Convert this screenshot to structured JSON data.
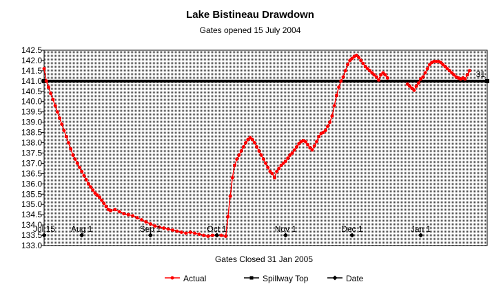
{
  "chart_data": {
    "type": "line",
    "title": "Lake Bistineau Drawdown",
    "subtitle": "Gates opened 15 July 2004",
    "footer": "Gates Closed 31 Jan 2005",
    "xlabel": "",
    "ylabel": "",
    "xlim": [
      "2004-07-15",
      "2005-01-31"
    ],
    "ylim": [
      133.0,
      142.5
    ],
    "y_ticks": [
      133.0,
      133.5,
      134.0,
      134.5,
      135.0,
      135.5,
      136.0,
      136.5,
      137.0,
      137.5,
      138.0,
      138.5,
      139.0,
      139.5,
      140.0,
      140.5,
      141.0,
      141.5,
      142.0,
      142.5
    ],
    "y_tick_labels": [
      "133.0",
      "133.5",
      "134.0",
      "134.5",
      "135.0",
      "135.5",
      "136.0",
      "136.5",
      "137.0",
      "137.5",
      "138.0",
      "138.5",
      "139.0",
      "139.5",
      "140.0",
      "140.5",
      "141.0",
      "141.5",
      "142.0",
      "142.5"
    ],
    "grid": true,
    "legend_position": "bottom",
    "colors": {
      "actual": "#ff0000",
      "spillway": "#000000",
      "date": "#000000"
    },
    "series": [
      {
        "name": "Actual",
        "color": "#ff0000",
        "points": [
          [
            "2004-07-15",
            141.6
          ],
          [
            "2004-07-16",
            141.0
          ],
          [
            "2004-07-17",
            140.7
          ],
          [
            "2004-07-18",
            140.4
          ],
          [
            "2004-07-19",
            140.1
          ],
          [
            "2004-07-20",
            139.8
          ],
          [
            "2004-07-21",
            139.5
          ],
          [
            "2004-07-22",
            139.2
          ],
          [
            "2004-07-23",
            138.9
          ],
          [
            "2004-07-24",
            138.6
          ],
          [
            "2004-07-25",
            138.3
          ],
          [
            "2004-07-26",
            138.0
          ],
          [
            "2004-07-27",
            137.7
          ],
          [
            "2004-07-28",
            137.4
          ],
          [
            "2004-07-29",
            137.2
          ],
          [
            "2004-07-30",
            137.0
          ],
          [
            "2004-07-31",
            136.8
          ],
          [
            "2004-08-01",
            136.6
          ],
          [
            "2004-08-02",
            136.4
          ],
          [
            "2004-08-03",
            136.2
          ],
          [
            "2004-08-04",
            136.0
          ],
          [
            "2004-08-05",
            135.85
          ],
          [
            "2004-08-06",
            135.7
          ],
          [
            "2004-08-07",
            135.55
          ],
          [
            "2004-08-08",
            135.45
          ],
          [
            "2004-08-09",
            135.35
          ],
          [
            "2004-08-10",
            135.2
          ],
          [
            "2004-08-11",
            135.05
          ],
          [
            "2004-08-12",
            134.9
          ],
          [
            "2004-08-13",
            134.75
          ],
          [
            "2004-08-14",
            134.7
          ],
          [
            "2004-08-16",
            134.75
          ],
          [
            "2004-08-18",
            134.65
          ],
          [
            "2004-08-20",
            134.55
          ],
          [
            "2004-08-22",
            134.5
          ],
          [
            "2004-08-24",
            134.45
          ],
          [
            "2004-08-26",
            134.35
          ],
          [
            "2004-08-28",
            134.25
          ],
          [
            "2004-08-30",
            134.15
          ],
          [
            "2004-09-01",
            134.05
          ],
          [
            "2004-09-03",
            133.95
          ],
          [
            "2004-09-05",
            133.9
          ],
          [
            "2004-09-07",
            133.85
          ],
          [
            "2004-09-09",
            133.8
          ],
          [
            "2004-09-11",
            133.75
          ],
          [
            "2004-09-13",
            133.7
          ],
          [
            "2004-09-15",
            133.65
          ],
          [
            "2004-09-17",
            133.6
          ],
          [
            "2004-09-19",
            133.65
          ],
          [
            "2004-09-21",
            133.6
          ],
          [
            "2004-09-23",
            133.55
          ],
          [
            "2004-09-25",
            133.5
          ],
          [
            "2004-09-27",
            133.45
          ],
          [
            "2004-09-29",
            133.5
          ],
          [
            "2004-10-01",
            133.5
          ],
          [
            "2004-10-03",
            133.5
          ],
          [
            "2004-10-05",
            133.45
          ],
          [
            "2004-10-06",
            134.4
          ],
          [
            "2004-10-07",
            135.4
          ],
          [
            "2004-10-08",
            136.3
          ],
          [
            "2004-10-09",
            136.9
          ],
          [
            "2004-10-10",
            137.2
          ],
          [
            "2004-10-11",
            137.4
          ],
          [
            "2004-10-12",
            137.6
          ],
          [
            "2004-10-13",
            137.8
          ],
          [
            "2004-10-14",
            138.0
          ],
          [
            "2004-10-15",
            138.15
          ],
          [
            "2004-10-16",
            138.25
          ],
          [
            "2004-10-17",
            138.15
          ],
          [
            "2004-10-18",
            138.0
          ],
          [
            "2004-10-19",
            137.8
          ],
          [
            "2004-10-20",
            137.6
          ],
          [
            "2004-10-21",
            137.4
          ],
          [
            "2004-10-22",
            137.2
          ],
          [
            "2004-10-23",
            137.0
          ],
          [
            "2004-10-24",
            136.8
          ],
          [
            "2004-10-25",
            136.6
          ],
          [
            "2004-10-26",
            136.5
          ],
          [
            "2004-10-27",
            136.3
          ],
          [
            "2004-10-28",
            136.6
          ],
          [
            "2004-10-29",
            136.75
          ],
          [
            "2004-10-30",
            136.9
          ],
          [
            "2004-10-31",
            137.0
          ],
          [
            "2004-11-01",
            137.1
          ],
          [
            "2004-11-02",
            137.25
          ],
          [
            "2004-11-03",
            137.4
          ],
          [
            "2004-11-04",
            137.5
          ],
          [
            "2004-11-05",
            137.65
          ],
          [
            "2004-11-06",
            137.8
          ],
          [
            "2004-11-07",
            137.95
          ],
          [
            "2004-11-08",
            138.05
          ],
          [
            "2004-11-09",
            138.1
          ],
          [
            "2004-11-10",
            138.05
          ],
          [
            "2004-11-11",
            137.9
          ],
          [
            "2004-11-12",
            137.75
          ],
          [
            "2004-11-13",
            137.65
          ],
          [
            "2004-11-14",
            137.85
          ],
          [
            "2004-11-15",
            138.05
          ],
          [
            "2004-11-16",
            138.3
          ],
          [
            "2004-11-17",
            138.45
          ],
          [
            "2004-11-18",
            138.5
          ],
          [
            "2004-11-19",
            138.6
          ],
          [
            "2004-11-20",
            138.8
          ],
          [
            "2004-11-21",
            139.0
          ],
          [
            "2004-11-22",
            139.3
          ],
          [
            "2004-11-23",
            139.8
          ],
          [
            "2004-11-24",
            140.3
          ],
          [
            "2004-11-25",
            140.7
          ],
          [
            "2004-11-26",
            141.0
          ],
          [
            "2004-11-27",
            141.2
          ],
          [
            "2004-11-28",
            141.5
          ],
          [
            "2004-11-29",
            141.8
          ],
          [
            "2004-11-30",
            142.0
          ],
          [
            "2004-12-01",
            142.1
          ],
          [
            "2004-12-02",
            142.2
          ],
          [
            "2004-12-03",
            142.25
          ],
          [
            "2004-12-04",
            142.15
          ],
          [
            "2004-12-05",
            142.0
          ],
          [
            "2004-12-06",
            141.85
          ],
          [
            "2004-12-07",
            141.7
          ],
          [
            "2004-12-08",
            141.6
          ],
          [
            "2004-12-09",
            141.5
          ],
          [
            "2004-12-10",
            141.4
          ],
          [
            "2004-12-11",
            141.3
          ],
          [
            "2004-12-12",
            141.2
          ],
          [
            "2004-12-13",
            141.05
          ],
          [
            "2004-12-14",
            141.3
          ],
          [
            "2004-12-15",
            141.4
          ],
          [
            "2004-12-16",
            141.3
          ],
          [
            "2004-12-17",
            141.15
          ],
          [
            "2004-12-26",
            140.85
          ],
          [
            "2004-12-27",
            140.75
          ],
          [
            "2004-12-28",
            140.65
          ],
          [
            "2004-12-29",
            140.55
          ],
          [
            "2004-12-30",
            140.75
          ],
          [
            "2004-12-31",
            140.9
          ],
          [
            "2005-01-01",
            141.1
          ],
          [
            "2005-01-02",
            141.2
          ],
          [
            "2005-01-03",
            141.4
          ],
          [
            "2005-01-04",
            141.6
          ],
          [
            "2005-01-05",
            141.8
          ],
          [
            "2005-01-06",
            141.9
          ],
          [
            "2005-01-07",
            141.95
          ],
          [
            "2005-01-08",
            141.95
          ],
          [
            "2005-01-09",
            141.95
          ],
          [
            "2005-01-10",
            141.9
          ],
          [
            "2005-01-11",
            141.8
          ],
          [
            "2005-01-12",
            141.7
          ],
          [
            "2005-01-13",
            141.6
          ],
          [
            "2005-01-14",
            141.5
          ],
          [
            "2005-01-15",
            141.4
          ],
          [
            "2005-01-16",
            141.3
          ],
          [
            "2005-01-17",
            141.2
          ],
          [
            "2005-01-18",
            141.15
          ],
          [
            "2005-01-19",
            141.1
          ],
          [
            "2005-01-20",
            141.15
          ],
          [
            "2005-01-21",
            141.1
          ],
          [
            "2005-01-22",
            141.3
          ],
          [
            "2005-01-23",
            141.5
          ]
        ]
      },
      {
        "name": "Spillway Top",
        "color": "#000000",
        "points": [
          [
            "2004-07-15",
            141.0
          ],
          [
            "2005-01-31",
            141.0
          ]
        ]
      },
      {
        "name": "Date",
        "color": "#000000",
        "points": [
          [
            "2004-07-15",
            133.5,
            "Jul 15"
          ],
          [
            "2004-08-01",
            133.5,
            "Aug 1"
          ],
          [
            "2004-09-01",
            133.5,
            "Sep 1"
          ],
          [
            "2004-10-01",
            133.5,
            "Oct 1"
          ],
          [
            "2004-11-01",
            133.5,
            "Nov 1"
          ],
          [
            "2004-12-01",
            133.5,
            "Dec 1"
          ],
          [
            "2005-01-01",
            133.5,
            "Jan 1"
          ]
        ],
        "end_label": "31"
      }
    ],
    "legend": [
      {
        "label": "Actual",
        "color": "#ff0000",
        "marker": "circle"
      },
      {
        "label": "Spillway Top",
        "color": "#000000",
        "marker": "square"
      },
      {
        "label": "Date",
        "color": "#000000",
        "marker": "diamond"
      }
    ]
  }
}
